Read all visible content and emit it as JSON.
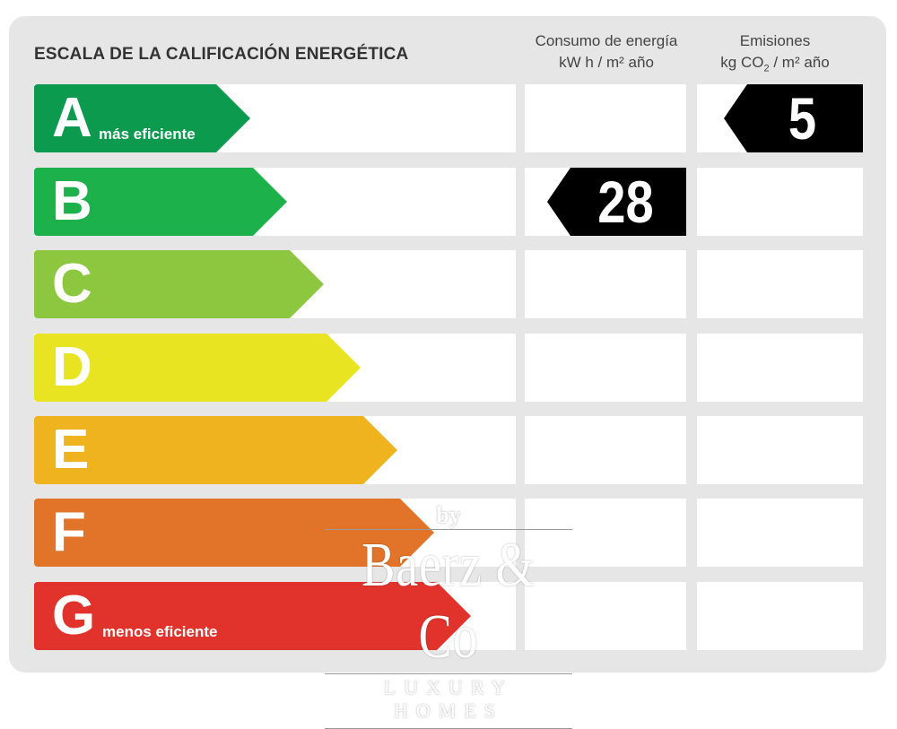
{
  "title": "ESCALA DE LA CALIFICACIÓN ENERGÉTICA",
  "columns": {
    "consumo": {
      "line1": "Consumo de energía",
      "line2": "kW h  / m² año"
    },
    "emisiones": {
      "line1": "Emisiones",
      "line2_a": "kg CO",
      "line2_sub": "2",
      "line2_b": "  / m² año"
    }
  },
  "ratings": [
    {
      "letter": "A",
      "label": "más eficiente",
      "color": "#0b9a4e"
    },
    {
      "letter": "B",
      "label": "",
      "color": "#1db14b"
    },
    {
      "letter": "C",
      "label": "",
      "color": "#8dc63f"
    },
    {
      "letter": "D",
      "label": "",
      "color": "#e9e421"
    },
    {
      "letter": "E",
      "label": "",
      "color": "#efb320"
    },
    {
      "letter": "F",
      "label": "",
      "color": "#e27429"
    },
    {
      "letter": "G",
      "label": "menos eficiente",
      "color": "#e1322b"
    }
  ],
  "consumo": {
    "value": "28",
    "rating": "B"
  },
  "emisiones": {
    "value": "5",
    "rating": "A"
  },
  "marker_color": "#000000",
  "watermark": {
    "by": "by",
    "name": "Baerz & Co",
    "tagline": "LUXURY HOMES"
  }
}
